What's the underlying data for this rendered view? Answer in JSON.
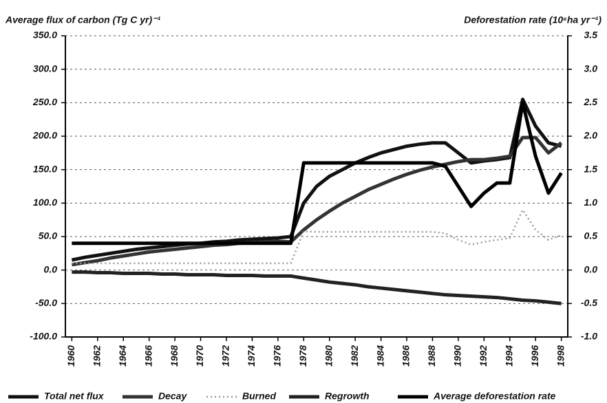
{
  "chart_data": {
    "type": "line",
    "y_label": "Average flux of carbon (Tg C yr)⁻¹",
    "y2_label": "Deforestation rate (10⁶ha yr⁻¹)",
    "x": [
      1960,
      1961,
      1962,
      1963,
      1964,
      1965,
      1966,
      1967,
      1968,
      1969,
      1970,
      1971,
      1972,
      1973,
      1974,
      1975,
      1976,
      1977,
      1978,
      1979,
      1980,
      1981,
      1982,
      1983,
      1984,
      1985,
      1986,
      1987,
      1988,
      1989,
      1990,
      1991,
      1992,
      1993,
      1994,
      1995,
      1996,
      1997,
      1998
    ],
    "xlim": [
      1959.5,
      1998.5
    ],
    "xticks": [
      1960,
      1962,
      1964,
      1966,
      1968,
      1970,
      1972,
      1974,
      1976,
      1978,
      1980,
      1982,
      1984,
      1986,
      1988,
      1990,
      1992,
      1994,
      1996,
      1998
    ],
    "ylim": [
      -100,
      350
    ],
    "yticks": [
      {
        "value": -100,
        "label": "-100.0"
      },
      {
        "value": -50,
        "label": "-50.0"
      },
      {
        "value": 0,
        "label": "0.0"
      },
      {
        "value": 50,
        "label": "50.0"
      },
      {
        "value": 100,
        "label": "100.0"
      },
      {
        "value": 150,
        "label": "150.0"
      },
      {
        "value": 200,
        "label": "200.0"
      },
      {
        "value": 250,
        "label": "250.0"
      },
      {
        "value": 300,
        "label": "300.0"
      },
      {
        "value": 350,
        "label": "350.0"
      }
    ],
    "y2lim": [
      -1,
      3.5
    ],
    "y2ticks": [
      {
        "value": -1,
        "label": "-1.0"
      },
      -0.5,
      {
        "value": 0,
        "label": "0.0"
      },
      0.5,
      {
        "value": 1,
        "label": "1.0"
      },
      1.5,
      {
        "value": 2,
        "label": "2.0"
      },
      2.5,
      {
        "value": 3,
        "label": "3.0"
      },
      3.5
    ],
    "grid": true,
    "legend": "bottom",
    "series": [
      {
        "name": "Total net flux",
        "color": "#111111",
        "width": 5,
        "values": [
          15,
          19,
          22,
          25,
          28,
          31,
          33,
          35,
          37,
          39,
          40,
          42,
          43,
          45,
          46,
          47,
          48,
          50,
          100,
          125,
          140,
          150,
          160,
          168,
          175,
          180,
          185,
          188,
          190,
          190,
          175,
          160,
          163,
          165,
          168,
          255,
          215,
          190,
          185
        ]
      },
      {
        "name": "Decay",
        "color": "#333333",
        "width": 5,
        "values": [
          8,
          11,
          14,
          18,
          21,
          24,
          27,
          29,
          31,
          33,
          35,
          37,
          38,
          40,
          41,
          42,
          43,
          42,
          60,
          75,
          88,
          100,
          110,
          120,
          128,
          136,
          143,
          149,
          154,
          158,
          162,
          165,
          165,
          167,
          170,
          198,
          198,
          175,
          190
        ]
      },
      {
        "name": "Burned",
        "color": "#9a9a9a",
        "width": 2.5,
        "dash": true,
        "values": [
          10,
          10,
          10,
          10,
          10,
          10,
          10,
          10,
          10,
          10,
          10,
          10,
          10,
          10,
          10,
          10,
          10,
          10,
          58,
          57,
          57,
          57,
          57,
          57,
          57,
          57,
          57,
          57,
          57,
          55,
          45,
          38,
          42,
          45,
          48,
          90,
          60,
          45,
          52
        ]
      },
      {
        "name": "Regrowth",
        "color": "#222222",
        "width": 5,
        "values": [
          -3,
          -3,
          -4,
          -4,
          -5,
          -5,
          -5,
          -6,
          -6,
          -7,
          -7,
          -7,
          -8,
          -8,
          -8,
          -9,
          -9,
          -9,
          -12,
          -15,
          -18,
          -20,
          -22,
          -25,
          -27,
          -29,
          -31,
          -33,
          -35,
          -37,
          -38,
          -39,
          -40,
          -41,
          -43,
          -45,
          -46,
          -48,
          -50
        ]
      },
      {
        "name": "Average deforestation rate",
        "color": "#000000",
        "width": 5,
        "axis": "y2",
        "values": [
          0.4,
          0.4,
          0.4,
          0.4,
          0.4,
          0.4,
          0.4,
          0.4,
          0.4,
          0.4,
          0.4,
          0.4,
          0.4,
          0.4,
          0.4,
          0.4,
          0.4,
          0.4,
          1.6,
          1.6,
          1.6,
          1.6,
          1.6,
          1.6,
          1.6,
          1.6,
          1.6,
          1.6,
          1.6,
          1.55,
          1.25,
          0.95,
          1.15,
          1.3,
          1.3,
          2.5,
          1.7,
          1.15,
          1.45
        ]
      }
    ]
  }
}
